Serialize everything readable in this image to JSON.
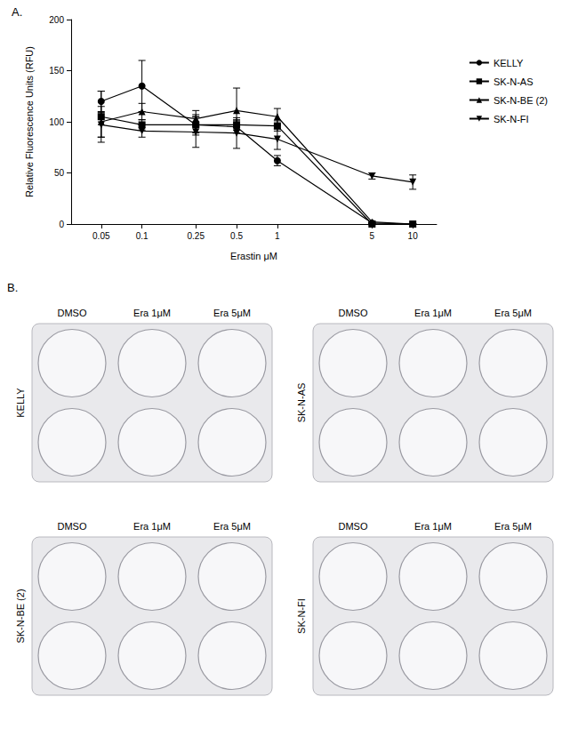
{
  "chart_data": {
    "type": "line",
    "panel_label": "A.",
    "x_label": "Erastin μM",
    "y_label": "Relative Fluorescence Units (RFU)",
    "log": "x",
    "x": [
      0.05,
      0.1,
      0.25,
      0.5,
      1,
      5,
      10
    ],
    "xlim": [
      0.03,
      15
    ],
    "xticks": [
      0.05,
      0.1,
      0.25,
      0.5,
      1,
      5,
      10
    ],
    "ylim": [
      0,
      200
    ],
    "yticks": [
      0,
      50,
      100,
      150,
      200
    ],
    "grid": false,
    "legend": "right",
    "series": [
      {
        "name": "KELLY",
        "color": "#000000",
        "marker": "circle",
        "values": [
          120,
          135,
          97,
          95,
          62,
          1,
          0
        ],
        "errors": [
          10,
          25,
          8,
          6,
          5,
          0,
          0
        ]
      },
      {
        "name": "SK-N-AS",
        "color": "#000000",
        "marker": "square",
        "values": [
          105,
          97,
          97,
          97,
          96,
          0,
          0
        ],
        "errors": [
          25,
          5,
          10,
          5,
          5,
          0,
          0
        ]
      },
      {
        "name": "SK-N-BE (2)",
        "color": "#000000",
        "marker": "triangle",
        "values": [
          100,
          110,
          103,
          111,
          105,
          2,
          0
        ],
        "errors": [
          15,
          8,
          8,
          22,
          8,
          1,
          0
        ]
      },
      {
        "name": "SK-N-FI",
        "color": "#000000",
        "marker": "triangle_down",
        "values": [
          97,
          91,
          90,
          89,
          83,
          47,
          41
        ],
        "errors": [
          12,
          6,
          15,
          15,
          10,
          3,
          7
        ]
      }
    ]
  },
  "panel_b": {
    "panel_label": "B.",
    "columns": [
      "DMSO",
      "Era 1μM",
      "Era 5μM"
    ],
    "plates": [
      "KELLY",
      "SK-N-AS",
      "SK-N-BE (2)",
      "SK-N-FI"
    ]
  }
}
